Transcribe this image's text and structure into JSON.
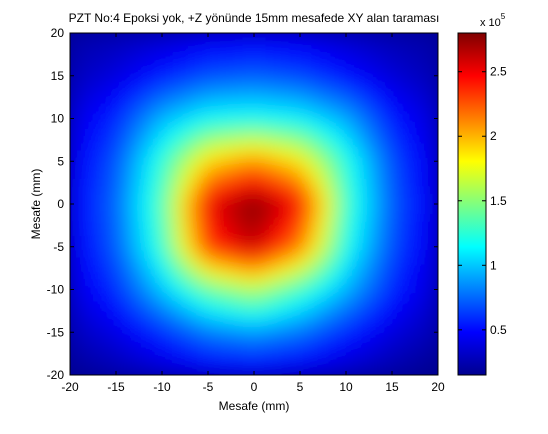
{
  "chart_data": {
    "type": "heatmap",
    "title": "PZT No:4 Epoksi yok, +Z yönünde 15mm mesafede XY alan taraması",
    "xlabel": "Mesafe (mm)",
    "ylabel": "Mesafe (mm)",
    "xlim": [
      -20,
      20
    ],
    "ylim": [
      -20,
      20
    ],
    "x_ticks": [
      "-20",
      "-15",
      "-10",
      "-5",
      "0",
      "5",
      "10",
      "15",
      "20"
    ],
    "y_ticks": [
      "20",
      "15",
      "10",
      "5",
      "0",
      "-5",
      "-10",
      "-15",
      "-20"
    ],
    "colorbar": {
      "colormap": "jet",
      "range": [
        15000,
        280000
      ],
      "tick_labels": [
        "0.5",
        "1",
        "1.5",
        "2",
        "2.5"
      ],
      "tick_values": [
        50000,
        100000,
        150000,
        200000,
        250000
      ],
      "exponent_label": "x 10",
      "exponent": "5"
    },
    "grid": false,
    "x": [
      -20,
      -15,
      -10,
      -5,
      0,
      5,
      10,
      15,
      20
    ],
    "y": [
      20,
      15,
      10,
      5,
      0,
      -5,
      -10,
      -15,
      -20
    ],
    "z": [
      [
        25000,
        28000,
        32000,
        38000,
        40000,
        38000,
        32000,
        27000,
        24000
      ],
      [
        30000,
        40000,
        55000,
        68000,
        72000,
        66000,
        52000,
        38000,
        28000
      ],
      [
        38000,
        58000,
        95000,
        115000,
        118000,
        112000,
        92000,
        55000,
        35000
      ],
      [
        42000,
        70000,
        125000,
        190000,
        210000,
        185000,
        122000,
        68000,
        38000
      ],
      [
        45000,
        75000,
        135000,
        250000,
        280000,
        245000,
        130000,
        72000,
        40000
      ],
      [
        42000,
        72000,
        128000,
        235000,
        262000,
        215000,
        120000,
        68000,
        38000
      ],
      [
        38000,
        60000,
        100000,
        140000,
        160000,
        130000,
        95000,
        58000,
        34000
      ],
      [
        30000,
        42000,
        60000,
        80000,
        88000,
        78000,
        58000,
        40000,
        28000
      ],
      [
        20000,
        26000,
        32000,
        38000,
        40000,
        36000,
        30000,
        24000,
        18000
      ]
    ]
  }
}
